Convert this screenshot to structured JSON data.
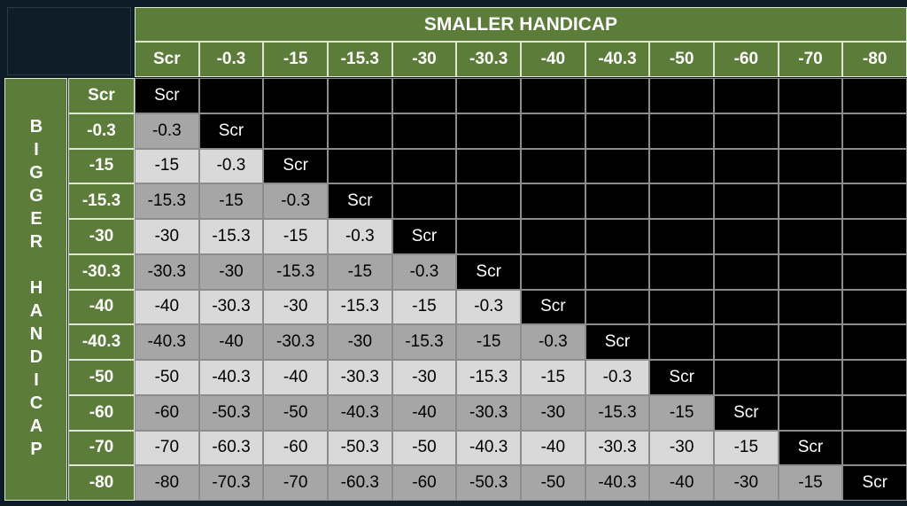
{
  "table": {
    "title": "SMALLER HANDICAP",
    "side_title": "BIGGER HANDICAP",
    "columns": [
      "Scr",
      "-0.3",
      "-15",
      "-15.3",
      "-30",
      "-30.3",
      "-40",
      "-40.3",
      "-50",
      "-60",
      "-70",
      "-80"
    ],
    "row_headers": [
      "Scr",
      "-0.3",
      "-15",
      "-15.3",
      "-30",
      "-30.3",
      "-40",
      "-40.3",
      "-50",
      "-60",
      "-70",
      "-80"
    ],
    "rows": [
      [
        "Scr"
      ],
      [
        "-0.3",
        "Scr"
      ],
      [
        "-15",
        "-0.3",
        "Scr"
      ],
      [
        "-15.3",
        "-15",
        "-0.3",
        "Scr"
      ],
      [
        "-30",
        "-15.3",
        "-15",
        "-0.3",
        "Scr"
      ],
      [
        "-30.3",
        "-30",
        "-15.3",
        "-15",
        "-0.3",
        "Scr"
      ],
      [
        "-40",
        "-30.3",
        "-30",
        "-15.3",
        "-15",
        "-0.3",
        "Scr"
      ],
      [
        "-40.3",
        "-40",
        "-30.3",
        "-30",
        "-15.3",
        "-15",
        "-0.3",
        "Scr"
      ],
      [
        "-50",
        "-40.3",
        "-40",
        "-30.3",
        "-30",
        "-15.3",
        "-15",
        "-0.3",
        "Scr"
      ],
      [
        "-60",
        "-50.3",
        "-50",
        "-40.3",
        "-40",
        "-30.3",
        "-30",
        "-15.3",
        "-15",
        "Scr"
      ],
      [
        "-70",
        "-60.3",
        "-60",
        "-50.3",
        "-50",
        "-40.3",
        "-40",
        "-30.3",
        "-30",
        "-15",
        "Scr"
      ],
      [
        "-80",
        "-70.3",
        "-70",
        "-60.3",
        "-60",
        "-50.3",
        "-50",
        "-40.3",
        "-40",
        "-30",
        "-15",
        "Scr"
      ]
    ]
  }
}
